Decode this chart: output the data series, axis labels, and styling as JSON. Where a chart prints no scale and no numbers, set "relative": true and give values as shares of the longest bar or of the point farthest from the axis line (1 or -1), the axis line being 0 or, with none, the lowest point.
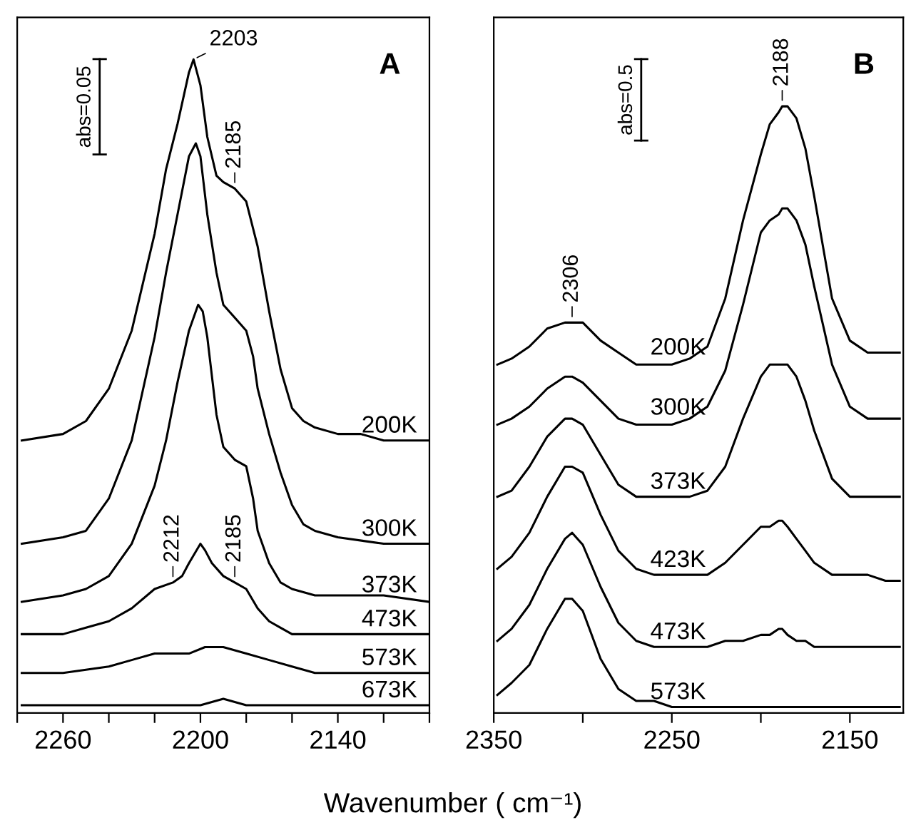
{
  "chart_data": [
    {
      "type": "line",
      "title": "A",
      "xlabel": "Wavenumber ( cm⁻¹)",
      "relative": true,
      "legend": false,
      "tick_labels": "x",
      "xlim": [
        2280,
        2100
      ],
      "xticks": [
        {
          "value": 2280,
          "label": null
        },
        2260,
        {
          "value": 2240,
          "label": null
        },
        {
          "value": 2220,
          "label": null
        },
        2200,
        {
          "value": 2180,
          "label": null
        },
        {
          "value": 2160,
          "label": null
        },
        2140,
        {
          "value": 2120,
          "label": null
        },
        {
          "value": 2100,
          "label": null
        }
      ],
      "annotations": [
        "abs=0.05",
        {
          "text": "2203",
          "x": 2203,
          "y": 1.0
        },
        {
          "text": "2185",
          "x": 2185,
          "y": 0.8
        },
        {
          "text": "2212",
          "x": 2212,
          "y": 0.19
        },
        {
          "text": "2185",
          "x": 2185,
          "y": 0.19
        }
      ],
      "series": [
        {
          "name": "200K",
          "color": "#000000",
          "x": [
            2278,
            2260,
            2250,
            2240,
            2230,
            2220,
            2215,
            2210,
            2205,
            2203,
            2200,
            2197,
            2193,
            2190,
            2185,
            2180,
            2175,
            2170,
            2165,
            2160,
            2155,
            2150,
            2140,
            2130,
            2120,
            2110,
            2100
          ],
          "values": [
            0.41,
            0.42,
            0.44,
            0.49,
            0.58,
            0.73,
            0.83,
            0.9,
            0.98,
            1.0,
            0.96,
            0.88,
            0.82,
            0.81,
            0.8,
            0.78,
            0.71,
            0.61,
            0.52,
            0.46,
            0.44,
            0.43,
            0.42,
            0.42,
            0.41,
            0.41,
            0.41
          ]
        },
        {
          "name": "300K",
          "color": "#000000",
          "x": [
            2278,
            2260,
            2250,
            2240,
            2230,
            2220,
            2215,
            2210,
            2205,
            2202,
            2200,
            2197,
            2193,
            2190,
            2185,
            2180,
            2177,
            2175,
            2170,
            2165,
            2160,
            2155,
            2150,
            2140,
            2120,
            2100
          ],
          "values": [
            0.25,
            0.26,
            0.27,
            0.32,
            0.41,
            0.57,
            0.67,
            0.76,
            0.85,
            0.87,
            0.85,
            0.76,
            0.67,
            0.62,
            0.6,
            0.58,
            0.54,
            0.49,
            0.42,
            0.36,
            0.31,
            0.28,
            0.27,
            0.26,
            0.25,
            0.25
          ]
        },
        {
          "name": "373K",
          "color": "#000000",
          "x": [
            2278,
            2260,
            2250,
            2240,
            2230,
            2220,
            2215,
            2210,
            2205,
            2201,
            2199,
            2197,
            2193,
            2190,
            2185,
            2180,
            2177,
            2175,
            2170,
            2165,
            2160,
            2150,
            2140,
            2120,
            2100
          ],
          "values": [
            0.16,
            0.17,
            0.18,
            0.2,
            0.25,
            0.34,
            0.41,
            0.5,
            0.58,
            0.62,
            0.61,
            0.57,
            0.45,
            0.4,
            0.38,
            0.37,
            0.32,
            0.27,
            0.22,
            0.19,
            0.18,
            0.17,
            0.17,
            0.17,
            0.16
          ]
        },
        {
          "name": "473K",
          "color": "#000000",
          "x": [
            2278,
            2260,
            2250,
            2240,
            2230,
            2220,
            2212,
            2208,
            2205,
            2200,
            2198,
            2195,
            2190,
            2185,
            2180,
            2175,
            2170,
            2165,
            2160,
            2140,
            2100
          ],
          "values": [
            0.11,
            0.11,
            0.12,
            0.13,
            0.15,
            0.18,
            0.19,
            0.2,
            0.22,
            0.25,
            0.24,
            0.22,
            0.2,
            0.19,
            0.18,
            0.15,
            0.13,
            0.12,
            0.11,
            0.11,
            0.11
          ]
        },
        {
          "name": "573K",
          "color": "#000000",
          "x": [
            2278,
            2260,
            2240,
            2230,
            2220,
            2212,
            2205,
            2198,
            2195,
            2190,
            2180,
            2170,
            2160,
            2150,
            2120,
            2100
          ],
          "values": [
            0.05,
            0.05,
            0.06,
            0.07,
            0.08,
            0.08,
            0.08,
            0.09,
            0.09,
            0.09,
            0.08,
            0.07,
            0.06,
            0.05,
            0.05,
            0.05
          ]
        },
        {
          "name": "673K",
          "color": "#000000",
          "x": [
            2278,
            2240,
            2220,
            2210,
            2200,
            2190,
            2180,
            2160,
            2100
          ],
          "values": [
            0,
            0,
            0,
            0,
            0,
            0.01,
            0,
            0,
            0
          ]
        }
      ]
    },
    {
      "type": "line",
      "title": "B",
      "relative": true,
      "legend": false,
      "tick_labels": "x",
      "xlim": [
        2350,
        2120
      ],
      "xticks": [
        2350,
        {
          "value": 2300,
          "label": null
        },
        2250,
        {
          "value": 2200,
          "label": null
        },
        2150
      ],
      "annotations": [
        "abs=0.5",
        {
          "text": "2306",
          "x": 2306,
          "y": 0.64
        },
        {
          "text": "2188",
          "x": 2188,
          "y": 1.0
        }
      ],
      "series": [
        {
          "name": "200K",
          "color": "#000000",
          "x": [
            2348,
            2340,
            2330,
            2320,
            2310,
            2306,
            2300,
            2290,
            2280,
            2270,
            2260,
            2250,
            2240,
            2230,
            2220,
            2210,
            2200,
            2195,
            2190,
            2188,
            2185,
            2180,
            2175,
            2170,
            2160,
            2150,
            2140,
            2130,
            2122
          ],
          "values": [
            0.57,
            0.58,
            0.6,
            0.63,
            0.64,
            0.64,
            0.64,
            0.61,
            0.59,
            0.57,
            0.57,
            0.57,
            0.58,
            0.6,
            0.68,
            0.81,
            0.92,
            0.97,
            0.99,
            1.0,
            1.0,
            0.98,
            0.93,
            0.85,
            0.68,
            0.61,
            0.59,
            0.59,
            0.59
          ]
        },
        {
          "name": "300K",
          "color": "#000000",
          "x": [
            2348,
            2340,
            2330,
            2320,
            2310,
            2306,
            2300,
            2290,
            2280,
            2270,
            2260,
            2250,
            2240,
            2230,
            2220,
            2210,
            2200,
            2195,
            2190,
            2188,
            2185,
            2180,
            2175,
            2170,
            2160,
            2150,
            2140,
            2130,
            2122
          ],
          "values": [
            0.47,
            0.48,
            0.5,
            0.53,
            0.55,
            0.55,
            0.54,
            0.51,
            0.48,
            0.47,
            0.47,
            0.47,
            0.48,
            0.5,
            0.56,
            0.67,
            0.79,
            0.81,
            0.82,
            0.83,
            0.83,
            0.81,
            0.77,
            0.7,
            0.57,
            0.5,
            0.48,
            0.48,
            0.48
          ]
        },
        {
          "name": "373K",
          "color": "#000000",
          "x": [
            2348,
            2340,
            2330,
            2320,
            2310,
            2306,
            2300,
            2290,
            2280,
            2270,
            2260,
            2250,
            2240,
            2230,
            2220,
            2210,
            2200,
            2195,
            2190,
            2188,
            2185,
            2180,
            2175,
            2170,
            2160,
            2150,
            2140,
            2130,
            2122
          ],
          "values": [
            0.35,
            0.36,
            0.4,
            0.45,
            0.48,
            0.48,
            0.47,
            0.42,
            0.37,
            0.35,
            0.35,
            0.35,
            0.35,
            0.36,
            0.4,
            0.48,
            0.55,
            0.57,
            0.57,
            0.57,
            0.57,
            0.55,
            0.51,
            0.46,
            0.38,
            0.35,
            0.35,
            0.35,
            0.35
          ]
        },
        {
          "name": "423K",
          "color": "#000000",
          "x": [
            2348,
            2340,
            2330,
            2320,
            2310,
            2306,
            2300,
            2290,
            2280,
            2270,
            2260,
            2250,
            2240,
            2230,
            2220,
            2210,
            2200,
            2195,
            2190,
            2188,
            2185,
            2180,
            2175,
            2170,
            2160,
            2150,
            2140,
            2130,
            2122
          ],
          "values": [
            0.23,
            0.25,
            0.29,
            0.35,
            0.4,
            0.4,
            0.39,
            0.32,
            0.26,
            0.23,
            0.22,
            0.22,
            0.22,
            0.22,
            0.24,
            0.27,
            0.3,
            0.3,
            0.31,
            0.31,
            0.3,
            0.28,
            0.26,
            0.24,
            0.22,
            0.22,
            0.22,
            0.21,
            0.21
          ]
        },
        {
          "name": "473K",
          "color": "#000000",
          "x": [
            2348,
            2340,
            2330,
            2320,
            2310,
            2306,
            2300,
            2290,
            2280,
            2270,
            2260,
            2250,
            2240,
            2230,
            2220,
            2210,
            2200,
            2195,
            2190,
            2188,
            2185,
            2180,
            2175,
            2170,
            2160,
            2150,
            2140,
            2130,
            2122
          ],
          "values": [
            0.11,
            0.13,
            0.17,
            0.23,
            0.28,
            0.29,
            0.27,
            0.2,
            0.14,
            0.11,
            0.1,
            0.1,
            0.1,
            0.1,
            0.11,
            0.11,
            0.12,
            0.12,
            0.13,
            0.13,
            0.12,
            0.11,
            0.11,
            0.1,
            0.1,
            0.1,
            0.1,
            0.1,
            0.1
          ]
        },
        {
          "name": "573K",
          "color": "#000000",
          "x": [
            2348,
            2340,
            2330,
            2320,
            2310,
            2306,
            2300,
            2290,
            2280,
            2270,
            2260,
            2250,
            2240,
            2230,
            2220,
            2210,
            2200,
            2195,
            2190,
            2188,
            2185,
            2180,
            2175,
            2170,
            2160,
            2150,
            2140,
            2130,
            2122
          ],
          "values": [
            0.02,
            0.04,
            0.07,
            0.13,
            0.18,
            0.18,
            0.16,
            0.08,
            0.03,
            0.01,
            0.01,
            0,
            0,
            0,
            0,
            0,
            0,
            0,
            0,
            0,
            0,
            0,
            0,
            0,
            0,
            0,
            0,
            0,
            0
          ]
        }
      ]
    }
  ]
}
